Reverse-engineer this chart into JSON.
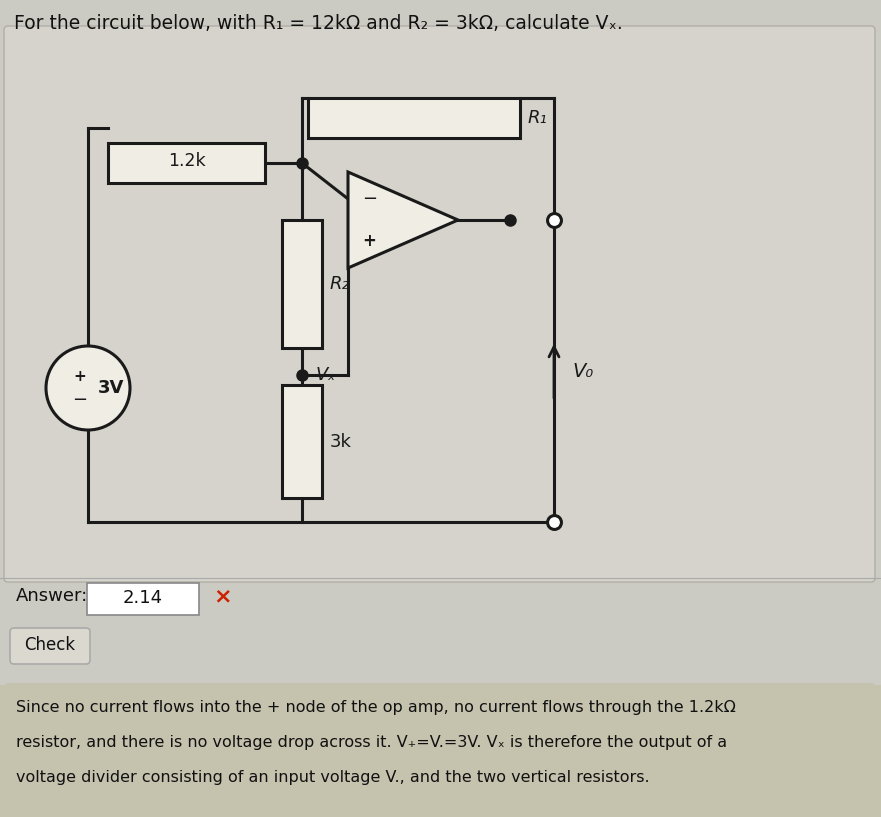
{
  "title": "For the circuit below, with R₁ = 12kΩ and R₂ = 3kΩ, calculate Vₓ.",
  "bg_color": "#cccbc3",
  "answer_text": "2.14",
  "answer_label": "Answer:",
  "check_label": "Check",
  "explanation_line1": "Since no current flows into the + node of the op amp, no current flows through the 1.2kΩ",
  "explanation_line2": "resistor, and there is no voltage drop across it. V₊=V.=3V. Vₓ is therefore the output of a",
  "explanation_line3": "voltage divider consisting of an input voltage V., and the two vertical resistors.",
  "explanation_bg": "#c5c2ae",
  "label_12k": "1.2k",
  "label_R2": "R₂",
  "label_3k": "3k",
  "label_R1": "R₁",
  "label_Vx": "Vₓ",
  "label_Vo": "V₀",
  "label_3V": "3V",
  "wire_color": "#1a1a1a",
  "resistor_fill": "#f0ede5",
  "resistor_edge": "#1a1a1a",
  "opamp_fill": "#f0ede5",
  "node_dot_color": "#1a1a1a",
  "main_panel_bg": "#d2d0c8",
  "answer_panel_bg": "#d8d6ce",
  "vs_fill": "#f0ede5"
}
